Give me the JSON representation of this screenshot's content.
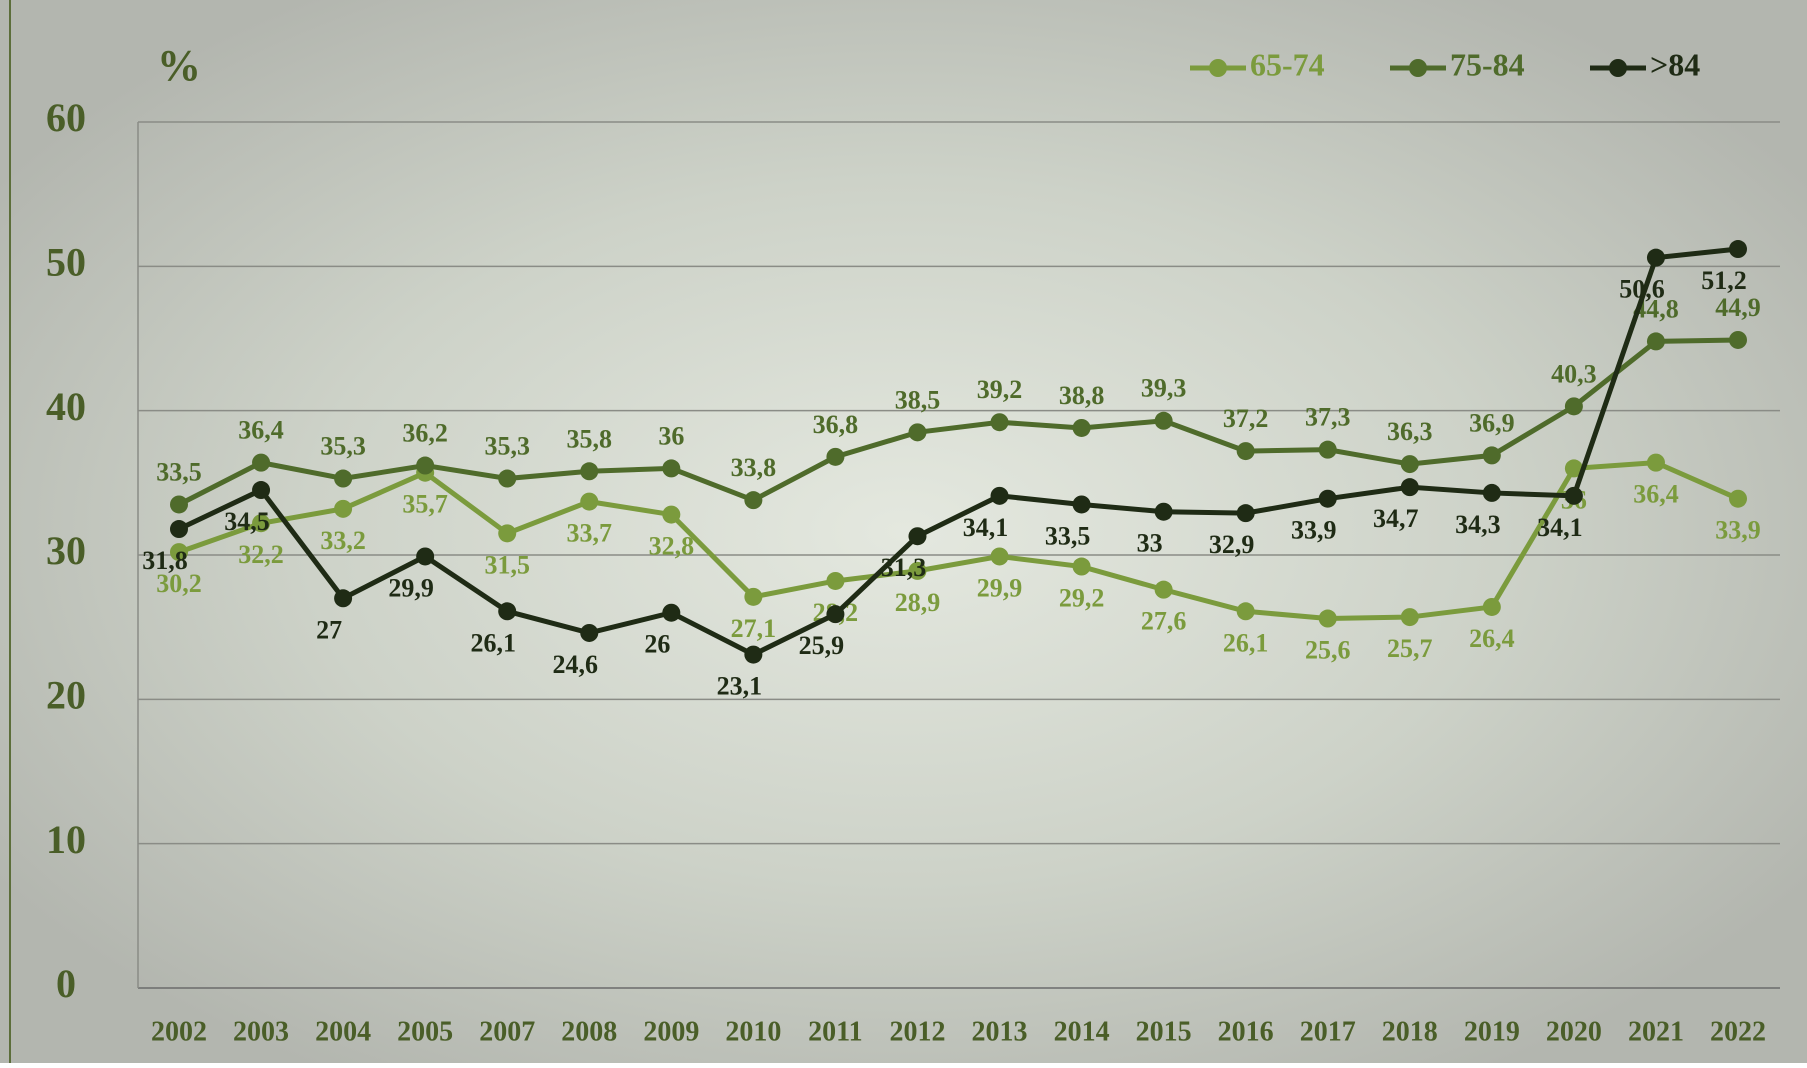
{
  "chart_data": {
    "type": "line",
    "y_label": "%",
    "categories": [
      "2002",
      "2003",
      "2004",
      "2005",
      "2007",
      "2008",
      "2009",
      "2010",
      "2011",
      "2012",
      "2013",
      "2014",
      "2015",
      "2016",
      "2017",
      "2018",
      "2019",
      "2020",
      "2021",
      "2022"
    ],
    "series": [
      {
        "name": "65-74",
        "color": "#7b9b3d",
        "values": [
          30.2,
          32.2,
          33.2,
          35.7,
          31.5,
          33.7,
          32.8,
          27.1,
          28.2,
          28.9,
          29.9,
          29.2,
          27.6,
          26.1,
          25.6,
          25.7,
          26.4,
          36,
          36.4,
          33.9
        ],
        "value_labels": [
          "30,2",
          "32,2",
          "33,2",
          "35,7",
          "31,5",
          "33,7",
          "32,8",
          "27,1",
          "28,2",
          "28,9",
          "29,9",
          "29,2",
          "27,6",
          "26,1",
          "25,6",
          "25,7",
          "26,4",
          "36",
          "36,4",
          "33,9"
        ]
      },
      {
        "name": "75-84",
        "color": "#4f6b2b",
        "values": [
          33.5,
          36.4,
          35.3,
          36.2,
          35.3,
          35.8,
          36,
          33.8,
          36.8,
          38.5,
          39.2,
          38.8,
          39.3,
          37.2,
          37.3,
          36.3,
          36.9,
          40.3,
          44.8,
          44.9
        ],
        "value_labels": [
          "33,5",
          "36,4",
          "35,3",
          "36,2",
          "35,3",
          "35,8",
          "36",
          "33,8",
          "36,8",
          "38,5",
          "39,2",
          "38,8",
          "39,3",
          "37,2",
          "37,3",
          "36,3",
          "36,9",
          "40,3",
          "44,8",
          "44,9"
        ]
      },
      {
        "name": ">84",
        "color": "#1f2b15",
        "values": [
          31.8,
          34.5,
          27,
          29.9,
          26.1,
          24.6,
          26,
          23.1,
          25.9,
          31.3,
          34.1,
          33.5,
          33,
          32.9,
          33.9,
          34.7,
          34.3,
          34.1,
          50.6,
          51.2
        ],
        "value_labels": [
          "31,8",
          "34,5",
          "27",
          "29,9",
          "26,1",
          "24,6",
          "26",
          "23,1",
          "25,9",
          "31,3",
          "34,1",
          "33,5",
          "33",
          "32,9",
          "33,9",
          "34,7",
          "34,3",
          "34,1",
          "50,6",
          "51,2"
        ]
      }
    ],
    "ylim": [
      0,
      60
    ],
    "yticks": [
      0,
      10,
      20,
      30,
      40,
      50,
      60
    ],
    "grid": true,
    "legend": "top-right"
  }
}
